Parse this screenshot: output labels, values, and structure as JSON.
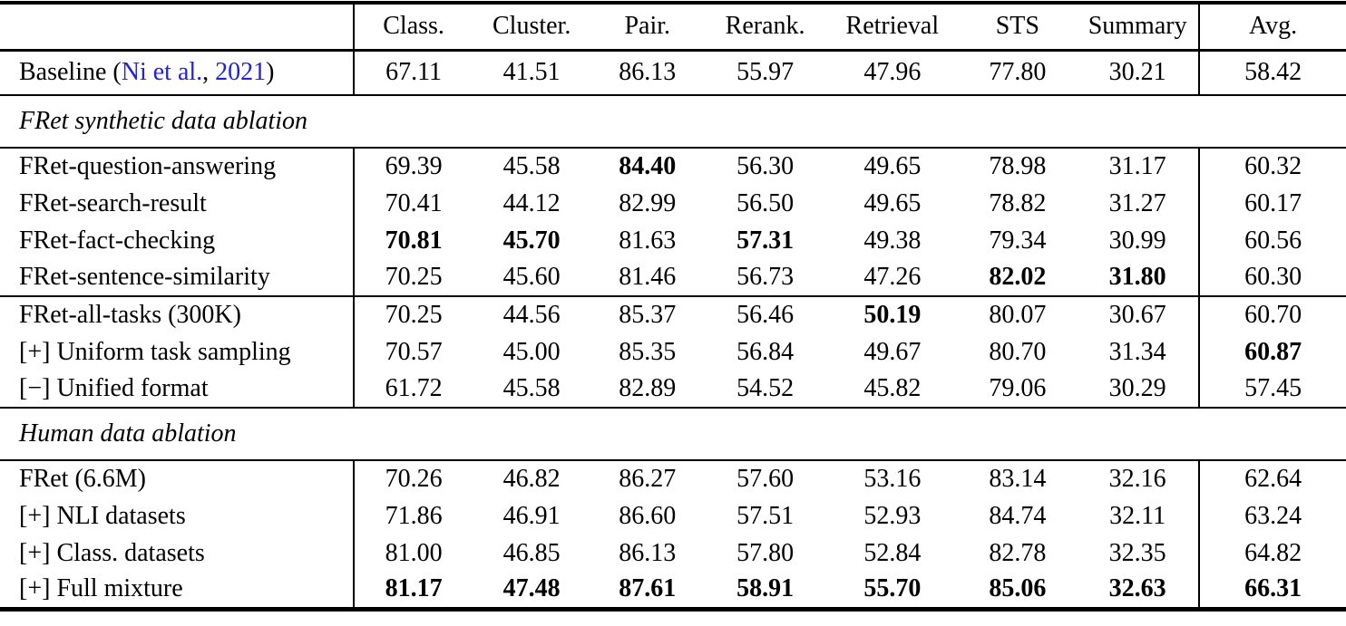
{
  "table": {
    "link_color": "#2121DE",
    "columns": [
      "",
      "Class.",
      "Cluster.",
      "Pair.",
      "Rerank.",
      "Retrieval",
      "STS",
      "Summary",
      "Avg."
    ],
    "sections": [
      {
        "type": "rows",
        "rows": [
          {
            "label": "Baseline (Ni et al., 2021)",
            "label_parts": [
              {
                "text": "Baseline (",
                "link": false
              },
              {
                "text": "Ni et al.",
                "link": true
              },
              {
                "text": ", ",
                "link": false
              },
              {
                "text": "2021",
                "link": true
              },
              {
                "text": ")",
                "link": false
              }
            ],
            "values": [
              "67.11",
              "41.51",
              "86.13",
              "55.97",
              "47.96",
              "77.80",
              "30.21",
              "58.42"
            ],
            "bold": [
              0,
              0,
              0,
              0,
              0,
              0,
              0,
              0
            ]
          }
        ]
      },
      {
        "type": "section",
        "title": "FRet synthetic data ablation"
      },
      {
        "type": "rows",
        "rows": [
          {
            "label": "FRet-question-answering",
            "values": [
              "69.39",
              "45.58",
              "84.40",
              "56.30",
              "49.65",
              "78.98",
              "31.17",
              "60.32"
            ],
            "bold": [
              0,
              0,
              1,
              0,
              0,
              0,
              0,
              0
            ]
          },
          {
            "label": "FRet-search-result",
            "values": [
              "70.41",
              "44.12",
              "82.99",
              "56.50",
              "49.65",
              "78.82",
              "31.27",
              "60.17"
            ],
            "bold": [
              0,
              0,
              0,
              0,
              0,
              0,
              0,
              0
            ]
          },
          {
            "label": "FRet-fact-checking",
            "values": [
              "70.81",
              "45.70",
              "81.63",
              "57.31",
              "49.38",
              "79.34",
              "30.99",
              "60.56"
            ],
            "bold": [
              1,
              1,
              0,
              1,
              0,
              0,
              0,
              0
            ]
          },
          {
            "label": "FRet-sentence-similarity",
            "values": [
              "70.25",
              "45.60",
              "81.46",
              "56.73",
              "47.26",
              "82.02",
              "31.80",
              "60.30"
            ],
            "bold": [
              0,
              0,
              0,
              0,
              0,
              1,
              1,
              0
            ]
          }
        ]
      },
      {
        "type": "rows",
        "rows": [
          {
            "label": "FRet-all-tasks (300K)",
            "values": [
              "70.25",
              "44.56",
              "85.37",
              "56.46",
              "50.19",
              "80.07",
              "30.67",
              "60.70"
            ],
            "bold": [
              0,
              0,
              0,
              0,
              1,
              0,
              0,
              0
            ]
          },
          {
            "label": "[+] Uniform task sampling",
            "values": [
              "70.57",
              "45.00",
              "85.35",
              "56.84",
              "49.67",
              "80.70",
              "31.34",
              "60.87"
            ],
            "bold": [
              0,
              0,
              0,
              0,
              0,
              0,
              0,
              1
            ]
          },
          {
            "label": "[−] Unified format",
            "values": [
              "61.72",
              "45.58",
              "82.89",
              "54.52",
              "45.82",
              "79.06",
              "30.29",
              "57.45"
            ],
            "bold": [
              0,
              0,
              0,
              0,
              0,
              0,
              0,
              0
            ]
          }
        ]
      },
      {
        "type": "section",
        "title": "Human data ablation"
      },
      {
        "type": "rows",
        "rows": [
          {
            "label": "FRet (6.6M)",
            "values": [
              "70.26",
              "46.82",
              "86.27",
              "57.60",
              "53.16",
              "83.14",
              "32.16",
              "62.64"
            ],
            "bold": [
              0,
              0,
              0,
              0,
              0,
              0,
              0,
              0
            ]
          },
          {
            "label": "[+] NLI datasets",
            "values": [
              "71.86",
              "46.91",
              "86.60",
              "57.51",
              "52.93",
              "84.74",
              "32.11",
              "63.24"
            ],
            "bold": [
              0,
              0,
              0,
              0,
              0,
              0,
              0,
              0
            ]
          },
          {
            "label": "[+] Class. datasets",
            "values": [
              "81.00",
              "46.85",
              "86.13",
              "57.80",
              "52.84",
              "82.78",
              "32.35",
              "64.82"
            ],
            "bold": [
              0,
              0,
              0,
              0,
              0,
              0,
              0,
              0
            ]
          },
          {
            "label": "[+] Full mixture",
            "values": [
              "81.17",
              "47.48",
              "87.61",
              "58.91",
              "55.70",
              "85.06",
              "32.63",
              "66.31"
            ],
            "bold": [
              1,
              1,
              1,
              1,
              1,
              1,
              1,
              1
            ]
          }
        ]
      }
    ]
  }
}
